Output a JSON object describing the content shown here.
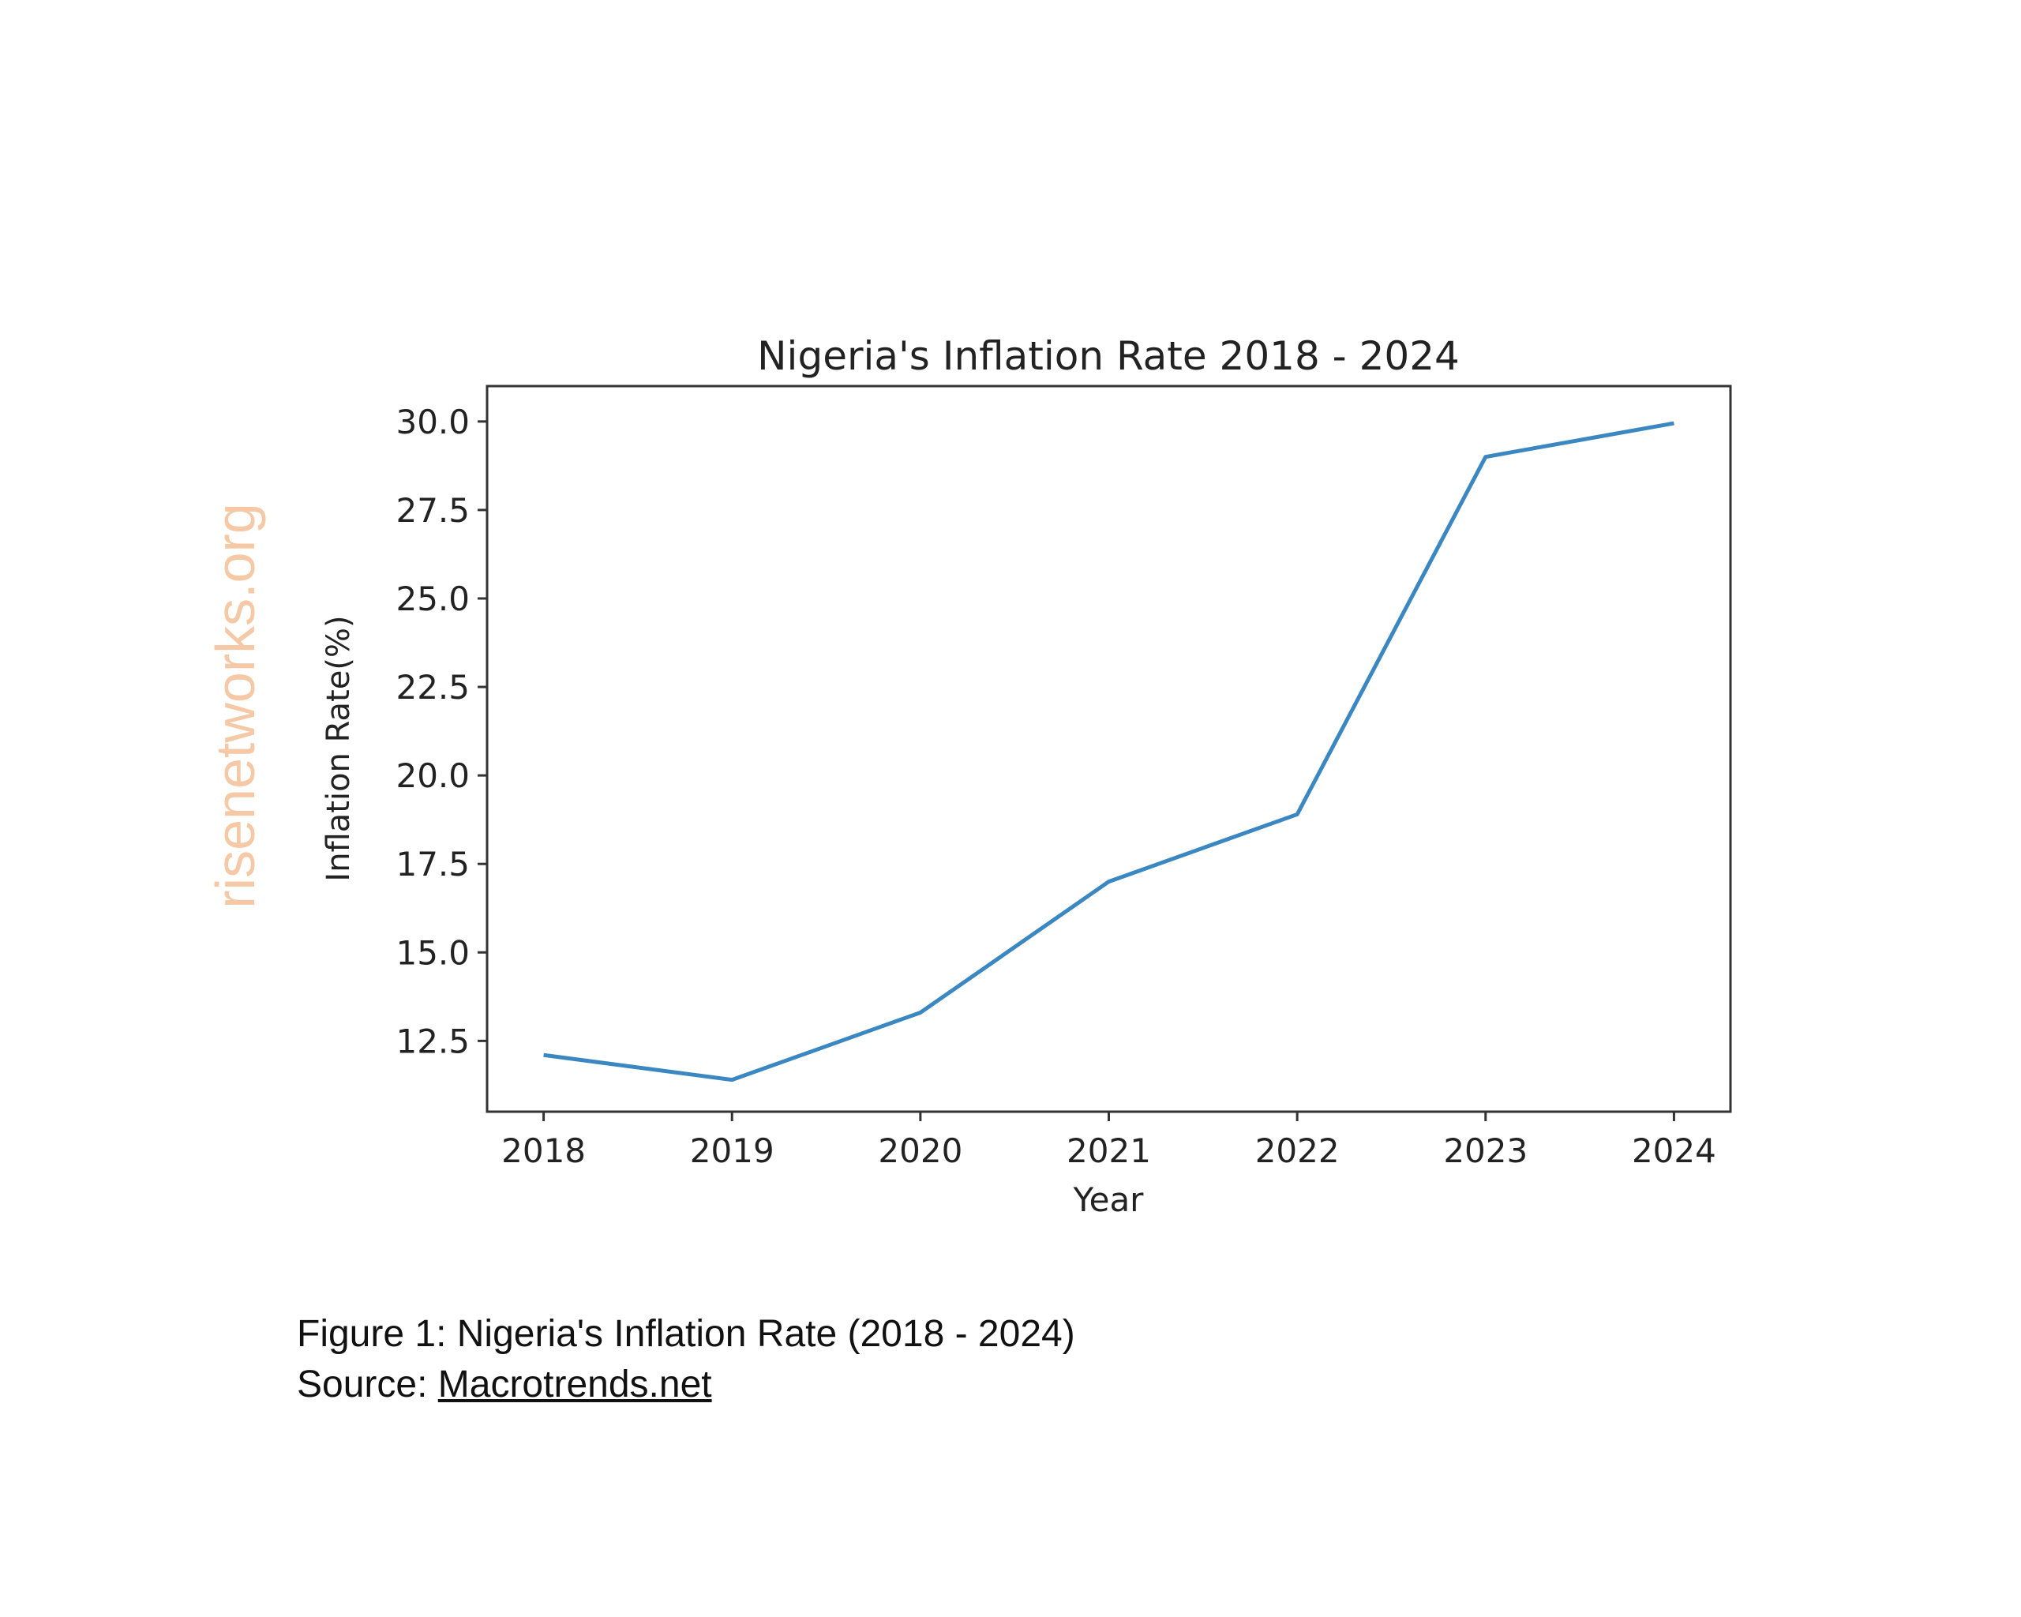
{
  "chart_data": {
    "type": "line",
    "title": "Nigeria's Inflation Rate 2018 - 2024",
    "xlabel": "Year",
    "ylabel": "Inflation Rate(%)",
    "x": [
      2018,
      2019,
      2020,
      2021,
      2022,
      2023,
      2024
    ],
    "x_tick_labels": [
      "2018",
      "2019",
      "2020",
      "2021",
      "2022",
      "2023",
      "2024"
    ],
    "series": [
      {
        "values": [
          12.1,
          11.4,
          13.3,
          17.0,
          18.9,
          29.0,
          29.95
        ],
        "color": "#3a87c2"
      }
    ],
    "y_ticks": [
      12.5,
      15.0,
      17.5,
      20.0,
      22.5,
      25.0,
      27.5,
      30.0
    ],
    "y_tick_labels": [
      "12.5",
      "15.0",
      "17.5",
      "20.0",
      "22.5",
      "25.0",
      "27.5",
      "30.0"
    ],
    "xlim": [
      2017.7,
      2024.3
    ],
    "ylim": [
      10.5,
      31.0
    ],
    "grid": false,
    "legend": "none"
  },
  "watermark": {
    "text": "risenetworks.org",
    "color": "#f5c9a6"
  },
  "caption": {
    "figure": "Figure 1: Nigeria's Inflation Rate (2018 - 2024)",
    "source_label": "Source: ",
    "source_link": "Macrotrends.net"
  }
}
